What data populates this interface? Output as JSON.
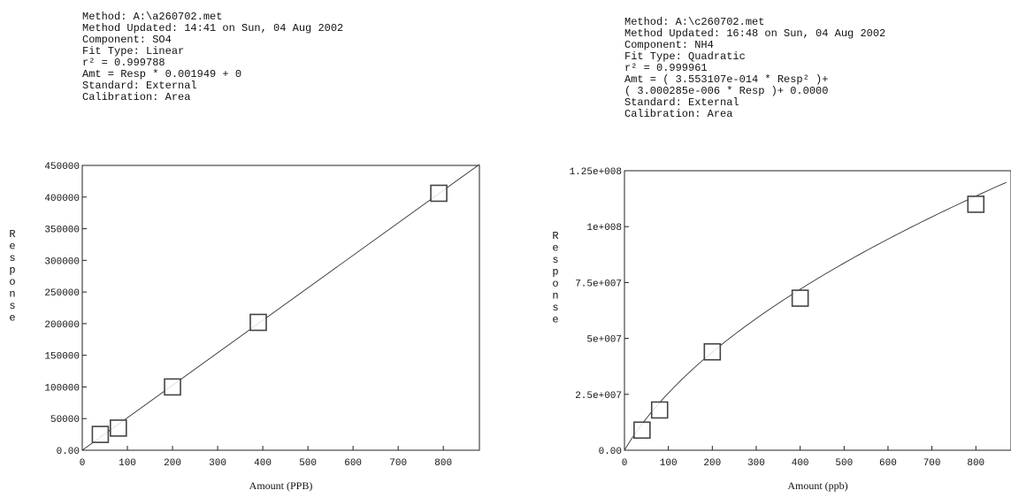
{
  "chart_data": [
    {
      "type": "scatter",
      "info_lines": [
        "Method: A:\\a260702.met",
        "Method Updated: 14:41 on Sun, 04 Aug 2002",
        "Component: SO4",
        "Fit Type: Linear",
        "r² = 0.999788",
        "Amt = Resp * 0.001949 + 0",
        "Standard: External",
        "Calibration: Area"
      ],
      "xlabel": "Amount (PPB)",
      "ylabel": "Response",
      "xlim": [
        0,
        880
      ],
      "ylim": [
        0,
        450000
      ],
      "x_ticks": [
        0,
        100,
        200,
        300,
        400,
        500,
        600,
        700,
        800
      ],
      "y_ticks": [
        0,
        50000,
        100000,
        150000,
        200000,
        250000,
        300000,
        350000,
        400000,
        450000
      ],
      "y_tick_labels": [
        "0.00",
        "50000",
        "100000",
        "150000",
        "200000",
        "250000",
        "300000",
        "350000",
        "400000",
        "450000"
      ],
      "points": [
        {
          "x": 40,
          "y": 25000
        },
        {
          "x": 80,
          "y": 35000
        },
        {
          "x": 200,
          "y": 100000
        },
        {
          "x": 390,
          "y": 202000
        },
        {
          "x": 790,
          "y": 406000
        }
      ],
      "fit": {
        "kind": "linear",
        "slope": 513.1,
        "intercept": 0
      }
    },
    {
      "type": "scatter",
      "info_lines": [
        "Method: A:\\c260702.met",
        "Method Updated: 16:48 on Sun, 04 Aug 2002",
        "Component: NH4",
        "Fit Type: Quadratic",
        "r² = 0.999961",
        "Amt = ( 3.553107e-014 * Resp² )+",
        "( 3.000285e-006 * Resp )+ 0.0000",
        "Standard: External",
        "Calibration: Area"
      ],
      "xlabel": "Amount (ppb)",
      "ylabel": "Response",
      "xlim": [
        0,
        880
      ],
      "ylim": [
        0,
        125000000
      ],
      "x_ticks": [
        0,
        100,
        200,
        300,
        400,
        500,
        600,
        700,
        800
      ],
      "y_ticks": [
        0,
        25000000,
        50000000,
        75000000,
        100000000,
        125000000
      ],
      "y_tick_labels": [
        "0.00",
        "2.5e+007",
        "5e+007",
        "7.5e+007",
        "1e+008",
        "1.25e+008"
      ],
      "points": [
        {
          "x": 40,
          "y": 9000000
        },
        {
          "x": 80,
          "y": 18000000
        },
        {
          "x": 200,
          "y": 44000000
        },
        {
          "x": 400,
          "y": 68000000
        },
        {
          "x": 800,
          "y": 110000000
        }
      ],
      "fit": {
        "kind": "quadratic",
        "a": 3.553107e-14,
        "b": 3.000285e-06,
        "c": 0
      }
    }
  ]
}
